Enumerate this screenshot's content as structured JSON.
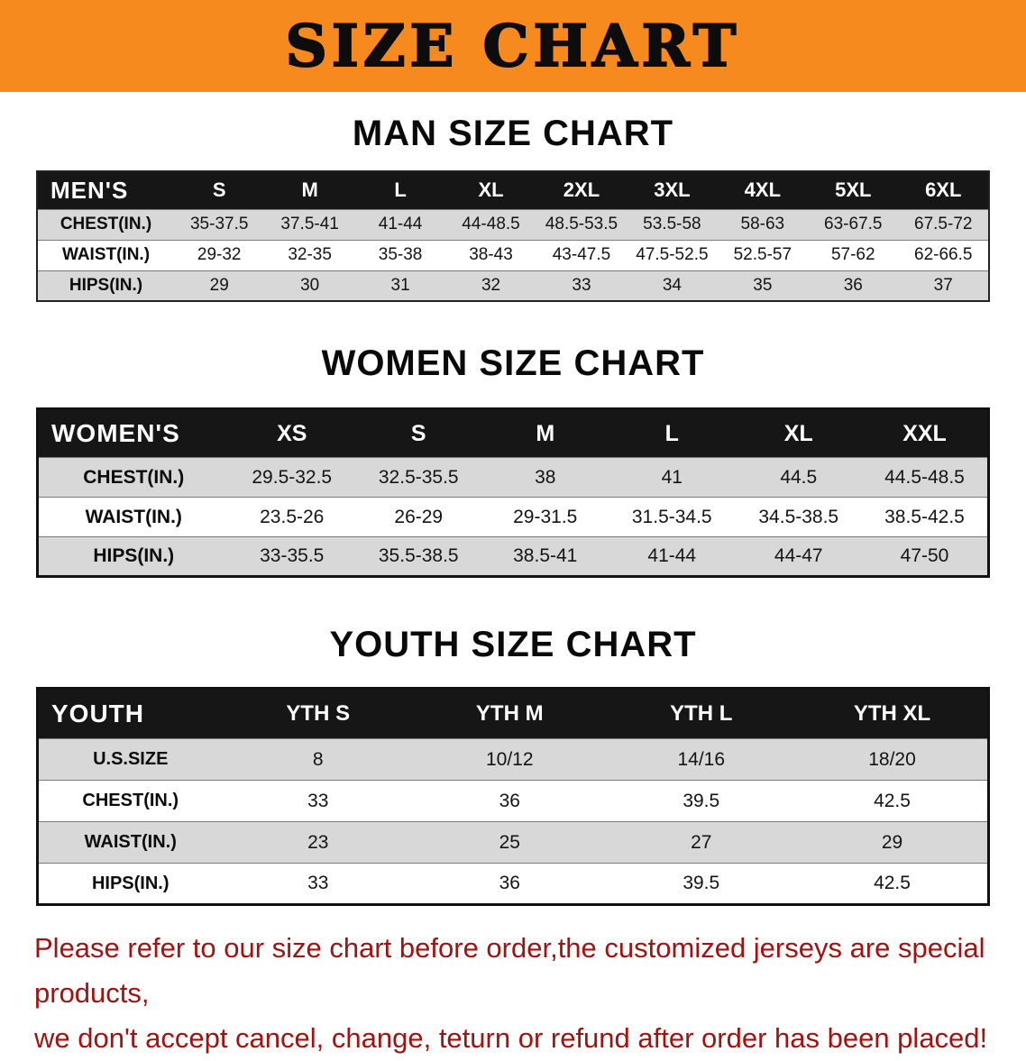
{
  "banner": {
    "title": "SIZE CHART"
  },
  "colors": {
    "banner_bg": "#f68a1f",
    "table_header_bg": "#161616",
    "stripe": "#d8d8d8",
    "footer_text": "#a01311"
  },
  "sections": [
    {
      "id": "men",
      "heading": "MAN SIZE CHART",
      "table": {
        "corner": "MEN'S",
        "columns": [
          "S",
          "M",
          "L",
          "XL",
          "2XL",
          "3XL",
          "4XL",
          "5XL",
          "6XL"
        ],
        "rows": [
          {
            "label": "CHEST(IN.)",
            "values": [
              "35-37.5",
              "37.5-41",
              "41-44",
              "44-48.5",
              "48.5-53.5",
              "53.5-58",
              "58-63",
              "63-67.5",
              "67.5-72"
            ]
          },
          {
            "label": "WAIST(IN.)",
            "values": [
              "29-32",
              "32-35",
              "35-38",
              "38-43",
              "43-47.5",
              "47.5-52.5",
              "52.5-57",
              "57-62",
              "62-66.5"
            ]
          },
          {
            "label": "HIPS(IN.)",
            "values": [
              "29",
              "30",
              "31",
              "32",
              "33",
              "34",
              "35",
              "36",
              "37"
            ]
          }
        ]
      }
    },
    {
      "id": "women",
      "heading": "WOMEN SIZE CHART",
      "table": {
        "corner": "WOMEN'S",
        "columns": [
          "XS",
          "S",
          "M",
          "L",
          "XL",
          "XXL"
        ],
        "rows": [
          {
            "label": "CHEST(IN.)",
            "values": [
              "29.5-32.5",
              "32.5-35.5",
              "38",
              "41",
              "44.5",
              "44.5-48.5"
            ]
          },
          {
            "label": "WAIST(IN.)",
            "values": [
              "23.5-26",
              "26-29",
              "29-31.5",
              "31.5-34.5",
              "34.5-38.5",
              "38.5-42.5"
            ]
          },
          {
            "label": "HIPS(IN.)",
            "values": [
              "33-35.5",
              "35.5-38.5",
              "38.5-41",
              "41-44",
              "44-47",
              "47-50"
            ]
          }
        ]
      }
    },
    {
      "id": "youth",
      "heading": "YOUTH SIZE CHART",
      "table": {
        "corner": "YOUTH",
        "columns": [
          "YTH S",
          "YTH M",
          "YTH L",
          "YTH XL"
        ],
        "rows": [
          {
            "label": "U.S.SIZE",
            "values": [
              "8",
              "10/12",
              "14/16",
              "18/20"
            ]
          },
          {
            "label": "CHEST(IN.)",
            "values": [
              "33",
              "36",
              "39.5",
              "42.5"
            ]
          },
          {
            "label": "WAIST(IN.)",
            "values": [
              "23",
              "25",
              "27",
              "29"
            ]
          },
          {
            "label": "HIPS(IN.)",
            "values": [
              "33",
              "36",
              "39.5",
              "42.5"
            ]
          }
        ]
      }
    }
  ],
  "footer": {
    "line1": "Please refer to our size chart before order,the customized jerseys are special products,",
    "line2": "we don't accept cancel, change, teturn or refund after order has been placed!"
  }
}
